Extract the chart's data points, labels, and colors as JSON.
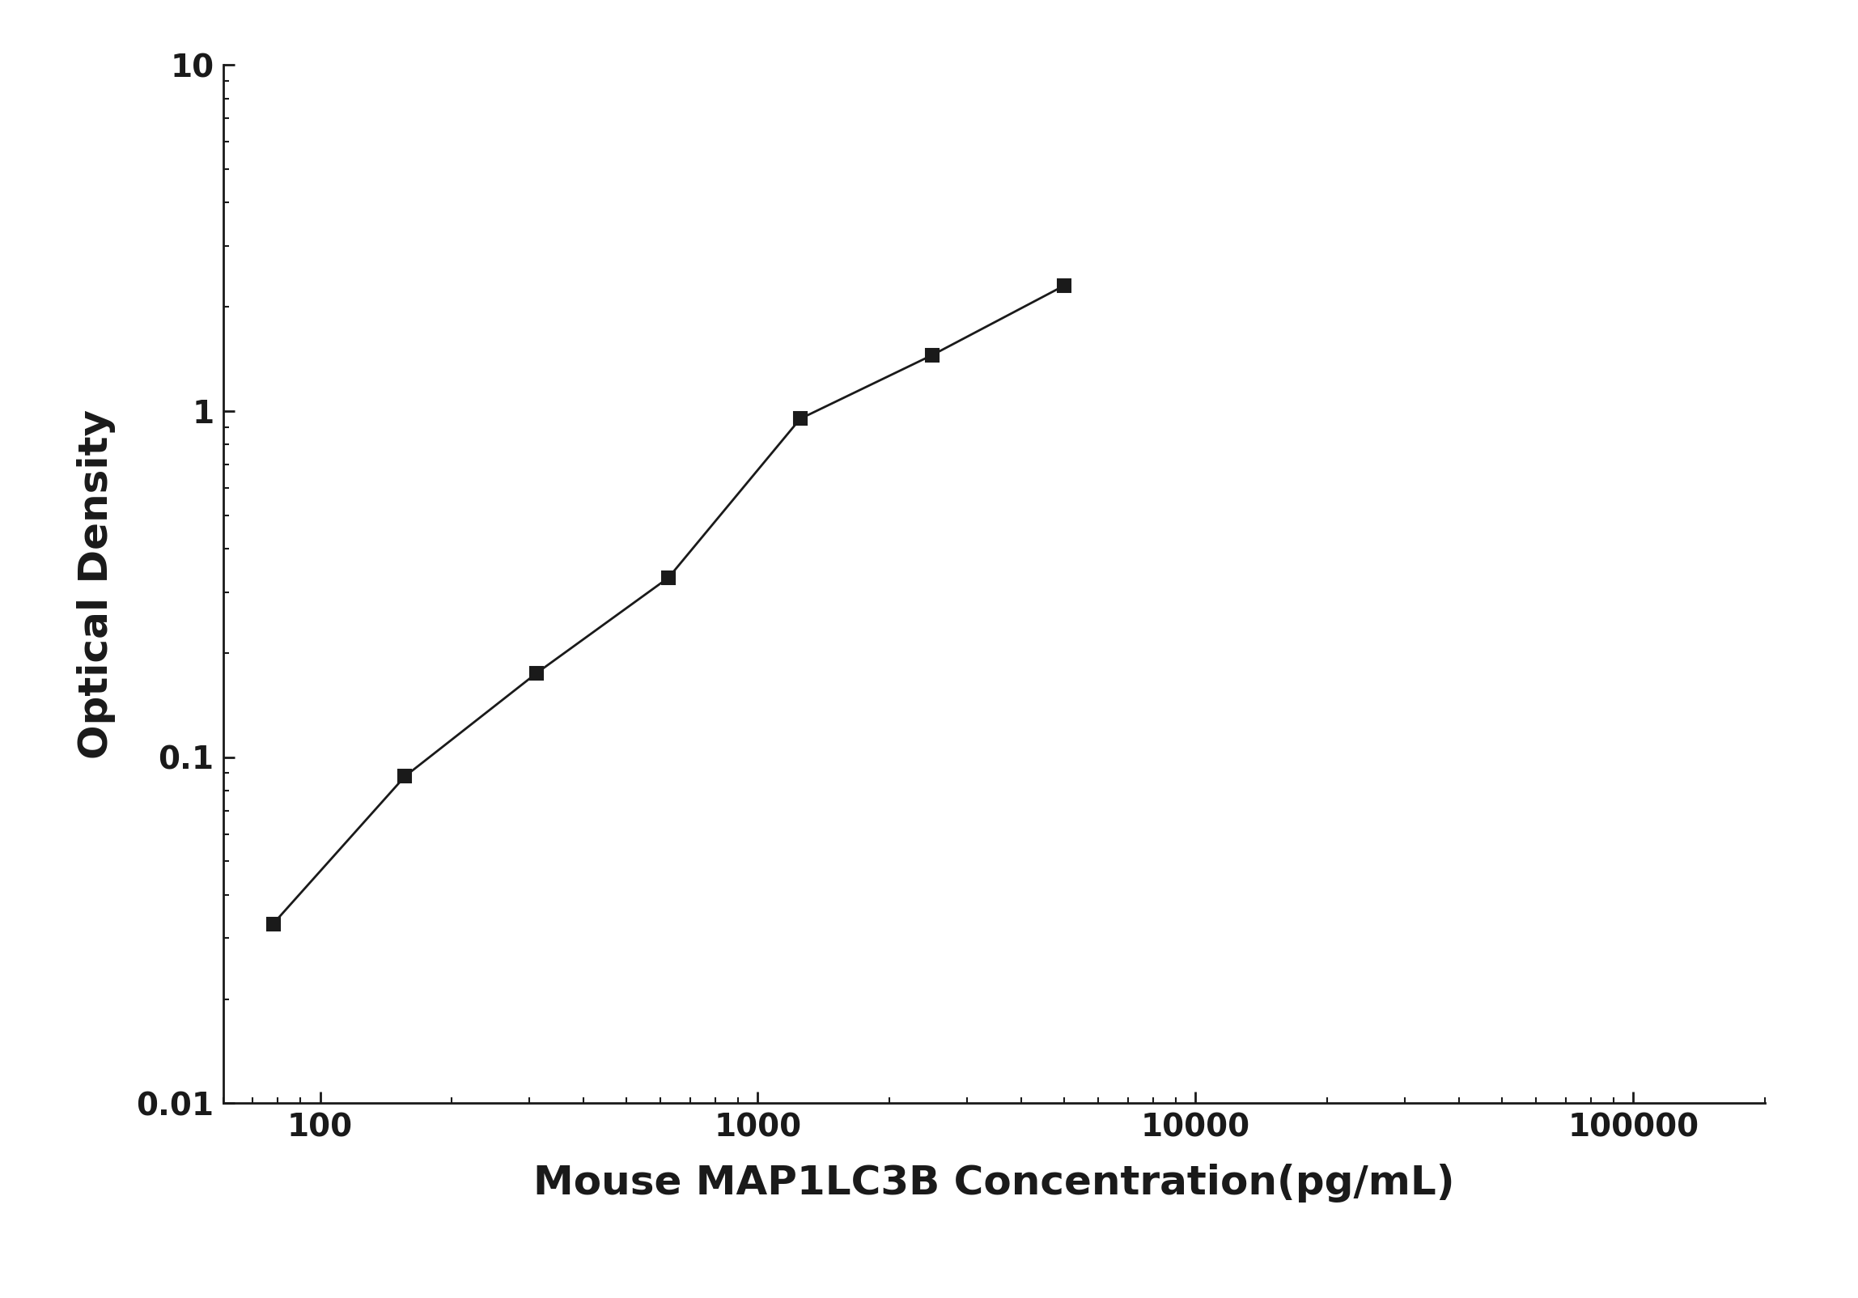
{
  "x_data": [
    78.125,
    156.25,
    312.5,
    625,
    1250,
    2500,
    5000
  ],
  "y_data": [
    0.033,
    0.088,
    0.175,
    0.33,
    0.95,
    1.45,
    2.3
  ],
  "xlabel": "Mouse MAP1LC3B Concentration(pg/mL)",
  "ylabel": "Optical Density",
  "xlim_log": [
    60,
    200000
  ],
  "ylim_log": [
    0.01,
    10
  ],
  "line_color": "#1a1a1a",
  "marker_color": "#1a1a1a",
  "marker": "s",
  "marker_size": 12,
  "line_width": 2.0,
  "xlabel_fontsize": 36,
  "ylabel_fontsize": 36,
  "tick_fontsize": 28,
  "background_color": "#ffffff",
  "spine_color": "#1a1a1a",
  "x_ticks": [
    100,
    1000,
    10000,
    100000
  ],
  "x_tick_labels": [
    "100",
    "1000",
    "10000",
    "100000"
  ],
  "y_ticks": [
    0.01,
    0.1,
    1,
    10
  ],
  "y_tick_labels": [
    "0.01",
    "0.1",
    "1",
    "10"
  ]
}
